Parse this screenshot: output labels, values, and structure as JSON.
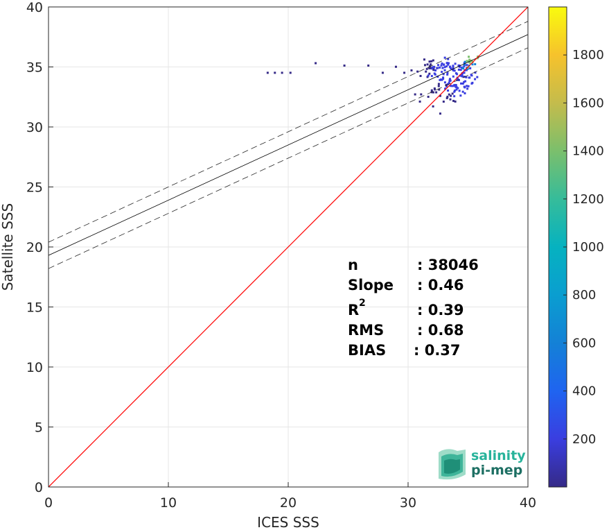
{
  "chart_data": {
    "type": "heatmap",
    "xlabel": "ICES SSS",
    "ylabel": "Satellite SSS",
    "xlim": [
      0,
      40
    ],
    "ylim": [
      0,
      40
    ],
    "xticks": [
      0,
      10,
      20,
      30,
      40
    ],
    "yticks": [
      0,
      5,
      10,
      15,
      20,
      25,
      30,
      35,
      40
    ],
    "grid": true,
    "colorbar": {
      "range": [
        0,
        2000
      ],
      "ticks": [
        200,
        400,
        600,
        800,
        1000,
        1200,
        1400,
        1600,
        1800
      ],
      "colormap": "parula"
    },
    "lines": {
      "identity": {
        "slope": 1,
        "intercept": 0,
        "color": "#ff0000"
      },
      "fit": {
        "slope": 0.46,
        "intercept": 19.3,
        "color": "#000000"
      },
      "fit_upper": {
        "slope": 0.46,
        "intercept": 20.4,
        "style": "dashed"
      },
      "fit_lower": {
        "slope": 0.46,
        "intercept": 18.2,
        "style": "dashed"
      }
    },
    "density_points": [
      {
        "x": 18.2,
        "y": 34.6,
        "c": 20
      },
      {
        "x": 18.8,
        "y": 34.6,
        "c": 20
      },
      {
        "x": 19.4,
        "y": 34.6,
        "c": 20
      },
      {
        "x": 20.1,
        "y": 34.6,
        "c": 20
      },
      {
        "x": 22.2,
        "y": 35.4,
        "c": 20
      },
      {
        "x": 24.6,
        "y": 35.2,
        "c": 20
      },
      {
        "x": 26.6,
        "y": 35.2,
        "c": 20
      },
      {
        "x": 27.8,
        "y": 34.6,
        "c": 20
      },
      {
        "x": 28.9,
        "y": 35.1,
        "c": 20
      },
      {
        "x": 29.6,
        "y": 34.6,
        "c": 20
      },
      {
        "x": 30.2,
        "y": 34.8,
        "c": 40
      },
      {
        "x": 30.7,
        "y": 34.7,
        "c": 40
      },
      {
        "x": 31.4,
        "y": 34.7,
        "c": 60
      },
      {
        "x": 31.8,
        "y": 35.3,
        "c": 60
      },
      {
        "x": 30.5,
        "y": 32.8,
        "c": 40
      },
      {
        "x": 31.0,
        "y": 32.8,
        "c": 40
      },
      {
        "x": 31.6,
        "y": 32.6,
        "c": 40
      },
      {
        "x": 30.9,
        "y": 32.2,
        "c": 30
      },
      {
        "x": 32.0,
        "y": 31.8,
        "c": 30
      },
      {
        "x": 32.6,
        "y": 31.2,
        "c": 30
      },
      {
        "x": 32.2,
        "y": 34.8,
        "c": 100
      },
      {
        "x": 32.8,
        "y": 35.0,
        "c": 120
      },
      {
        "x": 33.3,
        "y": 35.4,
        "c": 150
      },
      {
        "x": 33.7,
        "y": 34.8,
        "c": 180
      },
      {
        "x": 34.2,
        "y": 35.2,
        "c": 250
      },
      {
        "x": 34.6,
        "y": 34.6,
        "c": 300
      },
      {
        "x": 35.0,
        "y": 35.2,
        "c": 500
      },
      {
        "x": 35.3,
        "y": 35.5,
        "c": 1300
      },
      {
        "x": 33.0,
        "y": 33.8,
        "c": 120
      },
      {
        "x": 33.6,
        "y": 33.5,
        "c": 140
      },
      {
        "x": 34.0,
        "y": 34.0,
        "c": 200
      },
      {
        "x": 34.5,
        "y": 33.7,
        "c": 160
      },
      {
        "x": 32.5,
        "y": 33.2,
        "c": 90
      },
      {
        "x": 33.2,
        "y": 32.6,
        "c": 80
      },
      {
        "x": 34.2,
        "y": 33.1,
        "c": 100
      },
      {
        "x": 35.0,
        "y": 34.2,
        "c": 220
      }
    ]
  },
  "stats": {
    "n_label": "n",
    "n_value": ": 38046",
    "slope_label": "Slope",
    "slope_value": ": 0.46",
    "r2_label": "R",
    "r2_sup": "2",
    "r2_value": ": 0.39",
    "rms_label": "RMS",
    "rms_value": ": 0.68",
    "bias_label": "BIAS",
    "bias_value": ": 0.37"
  },
  "logo": {
    "line1": "salinity",
    "line2": "pi-mep"
  }
}
